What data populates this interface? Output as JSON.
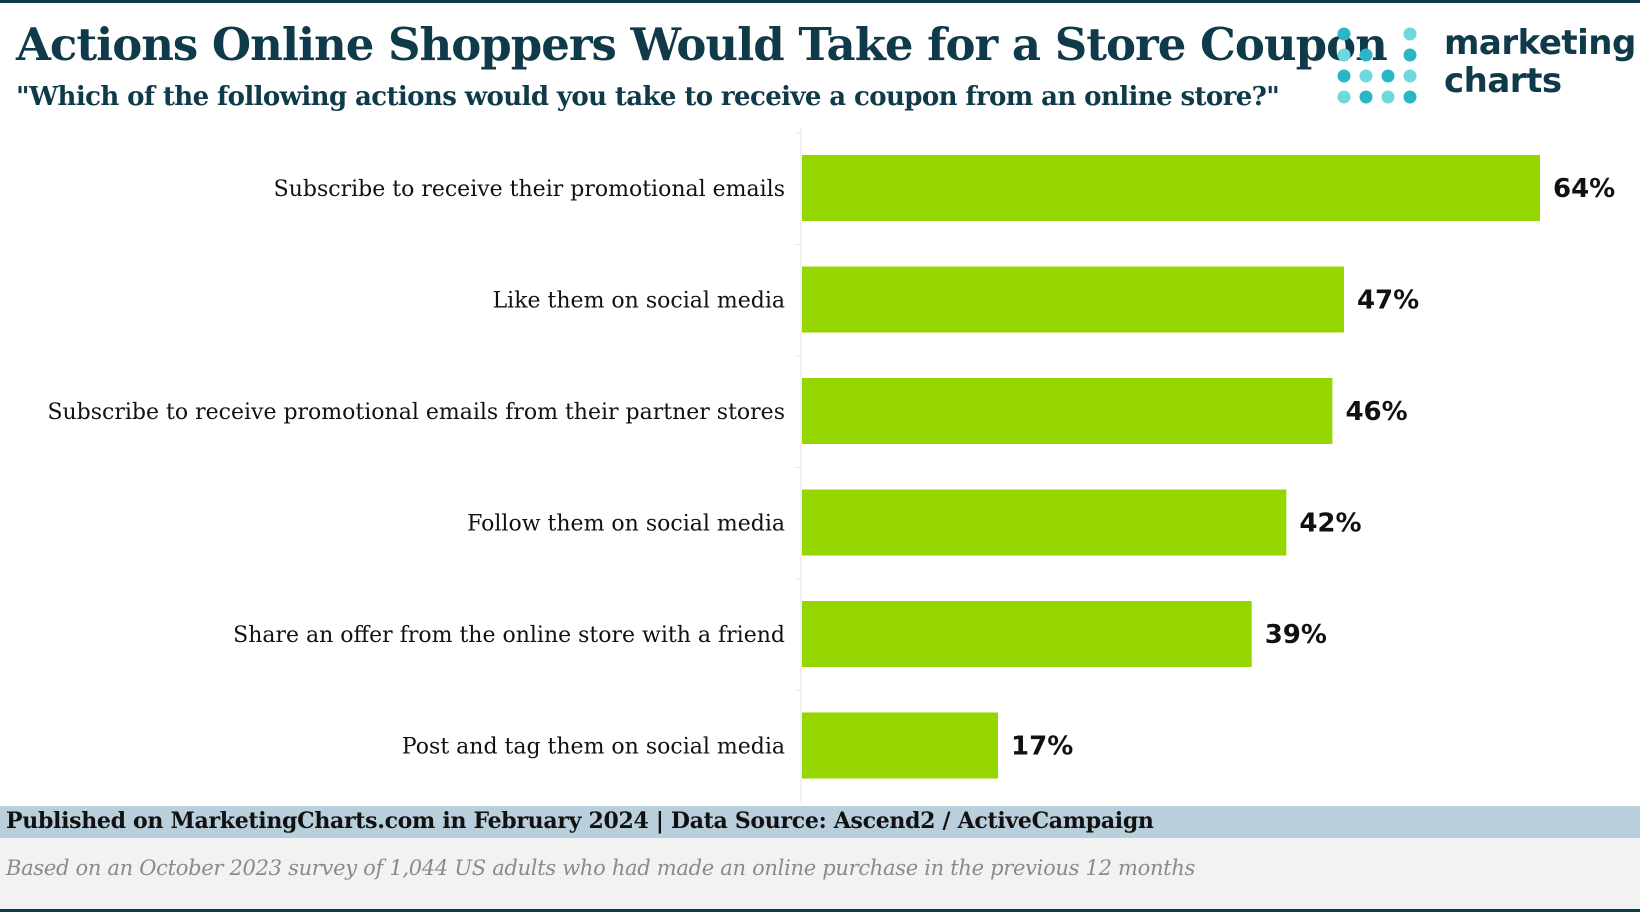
{
  "header": {
    "title": "Actions Online Shoppers Would Take for a Store Coupon",
    "subtitle": "\"Which of the following actions would you take to receive a coupon from an online store?\""
  },
  "logo": {
    "line1": "marketing",
    "line2": "charts",
    "dot_colors": [
      "#2bb6c7",
      "#6fd8dc"
    ]
  },
  "chart_data": {
    "type": "bar",
    "orientation": "horizontal",
    "categories": [
      "Subscribe to receive their promotional emails",
      "Like them on social media",
      "Subscribe to receive promotional emails from their partner stores",
      "Follow them on social media",
      "Share an offer from the online store with a friend",
      "Post and tag them on social media"
    ],
    "values": [
      64,
      47,
      46,
      42,
      39,
      17
    ],
    "value_labels": [
      "64%",
      "47%",
      "46%",
      "42%",
      "39%",
      "17%"
    ],
    "unit": "%",
    "xlim": [
      0,
      64
    ],
    "grid": false,
    "bar_color": "#96d600"
  },
  "footer": {
    "source": "Published on MarketingCharts.com in February 2024 | Data Source: Ascend2 / ActiveCampaign",
    "note": "Based on an October 2023 survey of 1,044 US adults who had made an online purchase in the previous 12 months"
  }
}
